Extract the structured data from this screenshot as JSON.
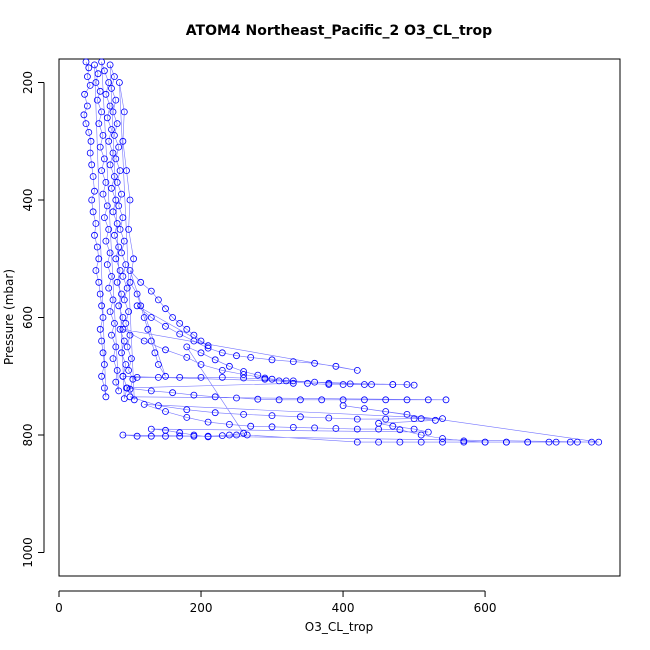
{
  "chart_data": {
    "type": "scatter",
    "title": "ATOM4 Northeast_Pacific_2 O3_CL_trop",
    "xlabel": "O3_CL_trop",
    "ylabel": "Pressure (mbar)",
    "xlim": [
      0,
      790
    ],
    "ylim": [
      1040,
      160
    ],
    "y_reversed": true,
    "x_ticks": [
      0,
      200,
      400,
      600
    ],
    "y_ticks": [
      200,
      400,
      600,
      800,
      1000
    ],
    "x_tick_labels": [
      "0",
      "200",
      "400",
      "600"
    ],
    "y_tick_labels": [
      "200",
      "400",
      "600",
      "800",
      "1000"
    ],
    "grid": false,
    "legend": "none",
    "marker": "open-circle",
    "connect_points": true,
    "series_color": "#0000ff",
    "series": [
      {
        "points": [
          [
            38,
            165
          ],
          [
            42,
            175
          ],
          [
            40,
            190
          ],
          [
            44,
            205
          ],
          [
            36,
            220
          ],
          [
            40,
            240
          ],
          [
            35,
            255
          ],
          [
            38,
            270
          ],
          [
            42,
            285
          ],
          [
            45,
            300
          ],
          [
            44,
            320
          ],
          [
            46,
            340
          ],
          [
            48,
            360
          ],
          [
            50,
            385
          ],
          [
            46,
            400
          ],
          [
            48,
            420
          ],
          [
            52,
            440
          ],
          [
            50,
            460
          ],
          [
            54,
            480
          ],
          [
            56,
            500
          ],
          [
            52,
            520
          ],
          [
            56,
            540
          ],
          [
            58,
            560
          ],
          [
            60,
            580
          ],
          [
            62,
            600
          ],
          [
            58,
            620
          ],
          [
            60,
            640
          ],
          [
            62,
            660
          ],
          [
            64,
            680
          ],
          [
            60,
            700
          ],
          [
            64,
            720
          ],
          [
            66,
            735
          ],
          [
            50,
            170
          ],
          [
            55,
            185
          ],
          [
            52,
            200
          ],
          [
            58,
            215
          ],
          [
            54,
            230
          ],
          [
            60,
            250
          ],
          [
            56,
            270
          ],
          [
            62,
            290
          ],
          [
            58,
            310
          ],
          [
            64,
            330
          ],
          [
            60,
            350
          ],
          [
            66,
            370
          ],
          [
            62,
            390
          ],
          [
            68,
            410
          ],
          [
            64,
            430
          ],
          [
            70,
            450
          ],
          [
            66,
            470
          ],
          [
            72,
            490
          ],
          [
            68,
            510
          ],
          [
            74,
            530
          ],
          [
            70,
            550
          ],
          [
            76,
            570
          ],
          [
            72,
            590
          ],
          [
            78,
            610
          ],
          [
            74,
            630
          ],
          [
            80,
            650
          ],
          [
            76,
            670
          ],
          [
            82,
            690
          ],
          [
            80,
            710
          ],
          [
            84,
            725
          ],
          [
            60,
            165
          ],
          [
            64,
            180
          ],
          [
            70,
            200
          ],
          [
            66,
            220
          ],
          [
            72,
            240
          ],
          [
            68,
            260
          ],
          [
            74,
            280
          ],
          [
            70,
            300
          ],
          [
            76,
            320
          ],
          [
            72,
            340
          ],
          [
            78,
            360
          ],
          [
            74,
            380
          ],
          [
            80,
            400
          ],
          [
            76,
            420
          ],
          [
            82,
            440
          ],
          [
            78,
            460
          ],
          [
            84,
            480
          ],
          [
            80,
            500
          ],
          [
            86,
            520
          ],
          [
            82,
            540
          ],
          [
            88,
            560
          ],
          [
            84,
            580
          ],
          [
            90,
            600
          ],
          [
            86,
            620
          ],
          [
            92,
            640
          ],
          [
            88,
            660
          ],
          [
            94,
            680
          ],
          [
            90,
            700
          ],
          [
            96,
            720
          ],
          [
            92,
            738
          ],
          [
            72,
            170
          ],
          [
            78,
            190
          ],
          [
            74,
            210
          ],
          [
            80,
            230
          ],
          [
            76,
            250
          ],
          [
            82,
            270
          ],
          [
            78,
            290
          ],
          [
            84,
            310
          ],
          [
            80,
            330
          ],
          [
            86,
            350
          ],
          [
            82,
            370
          ],
          [
            88,
            390
          ],
          [
            84,
            410
          ],
          [
            90,
            430
          ],
          [
            86,
            450
          ],
          [
            92,
            470
          ],
          [
            88,
            490
          ],
          [
            94,
            510
          ],
          [
            90,
            530
          ],
          [
            96,
            550
          ],
          [
            92,
            570
          ],
          [
            98,
            590
          ],
          [
            94,
            610
          ],
          [
            100,
            630
          ],
          [
            96,
            650
          ],
          [
            102,
            670
          ],
          [
            98,
            690
          ],
          [
            104,
            705
          ],
          [
            100,
            722
          ],
          [
            106,
            740
          ],
          [
            85,
            200
          ],
          [
            92,
            250
          ],
          [
            90,
            300
          ],
          [
            95,
            350
          ],
          [
            100,
            400
          ],
          [
            98,
            450
          ],
          [
            105,
            500
          ],
          [
            100,
            540
          ],
          [
            110,
            560
          ],
          [
            115,
            580
          ],
          [
            120,
            600
          ],
          [
            125,
            620
          ],
          [
            130,
            640
          ],
          [
            135,
            660
          ],
          [
            140,
            680
          ],
          [
            150,
            700
          ],
          [
            100,
            520
          ],
          [
            115,
            540
          ],
          [
            130,
            555
          ],
          [
            140,
            570
          ],
          [
            150,
            585
          ],
          [
            160,
            600
          ],
          [
            170,
            610
          ],
          [
            180,
            620
          ],
          [
            190,
            630
          ],
          [
            200,
            640
          ],
          [
            210,
            648
          ],
          [
            110,
            580
          ],
          [
            130,
            600
          ],
          [
            150,
            615
          ],
          [
            170,
            628
          ],
          [
            190,
            640
          ],
          [
            210,
            652
          ],
          [
            230,
            660
          ],
          [
            250,
            665
          ],
          [
            270,
            668
          ],
          [
            300,
            672
          ],
          [
            330,
            675
          ],
          [
            360,
            678
          ],
          [
            390,
            683
          ],
          [
            420,
            690
          ],
          [
            90,
            620
          ],
          [
            120,
            640
          ],
          [
            150,
            655
          ],
          [
            180,
            668
          ],
          [
            200,
            680
          ],
          [
            230,
            690
          ],
          [
            260,
            697
          ],
          [
            290,
            703
          ],
          [
            320,
            708
          ],
          [
            350,
            712
          ],
          [
            380,
            714
          ],
          [
            400,
            714
          ],
          [
            430,
            714
          ],
          [
            470,
            714
          ],
          [
            500,
            715
          ],
          [
            90,
            700
          ],
          [
            110,
            702
          ],
          [
            140,
            702
          ],
          [
            170,
            702
          ],
          [
            200,
            702
          ],
          [
            230,
            702
          ],
          [
            260,
            703
          ],
          [
            290,
            705
          ],
          [
            310,
            708
          ],
          [
            330,
            712
          ],
          [
            95,
            720
          ],
          [
            130,
            725
          ],
          [
            160,
            728
          ],
          [
            190,
            732
          ],
          [
            220,
            735
          ],
          [
            250,
            737
          ],
          [
            280,
            739
          ],
          [
            310,
            740
          ],
          [
            340,
            740
          ],
          [
            370,
            740
          ],
          [
            400,
            740
          ],
          [
            430,
            740
          ],
          [
            460,
            740
          ],
          [
            490,
            740
          ],
          [
            520,
            740
          ],
          [
            545,
            740
          ],
          [
            100,
            735
          ],
          [
            140,
            750
          ],
          [
            180,
            757
          ],
          [
            220,
            762
          ],
          [
            260,
            765
          ],
          [
            300,
            767
          ],
          [
            340,
            769
          ],
          [
            380,
            771
          ],
          [
            420,
            773
          ],
          [
            460,
            773
          ],
          [
            500,
            772
          ],
          [
            540,
            772
          ],
          [
            120,
            748
          ],
          [
            150,
            760
          ],
          [
            180,
            770
          ],
          [
            210,
            778
          ],
          [
            240,
            782
          ],
          [
            270,
            785
          ],
          [
            300,
            786
          ],
          [
            330,
            787
          ],
          [
            360,
            788
          ],
          [
            390,
            789
          ],
          [
            420,
            790
          ],
          [
            450,
            790
          ],
          [
            480,
            791
          ],
          [
            510,
            800
          ],
          [
            540,
            806
          ],
          [
            570,
            810
          ],
          [
            600,
            812
          ],
          [
            630,
            812
          ],
          [
            660,
            812
          ],
          [
            690,
            812
          ],
          [
            720,
            812
          ],
          [
            750,
            812
          ],
          [
            90,
            800
          ],
          [
            110,
            802
          ],
          [
            130,
            802
          ],
          [
            150,
            802
          ],
          [
            170,
            802
          ],
          [
            190,
            802
          ],
          [
            210,
            802
          ],
          [
            230,
            801
          ],
          [
            250,
            800
          ],
          [
            265,
            800
          ],
          [
            420,
            812
          ],
          [
            450,
            812
          ],
          [
            480,
            812
          ],
          [
            510,
            812
          ],
          [
            540,
            812
          ],
          [
            570,
            812
          ],
          [
            600,
            812
          ],
          [
            630,
            812
          ],
          [
            660,
            812
          ],
          [
            700,
            812
          ],
          [
            730,
            812
          ],
          [
            760,
            812
          ],
          [
            400,
            750
          ],
          [
            430,
            755
          ],
          [
            460,
            760
          ],
          [
            490,
            765
          ],
          [
            510,
            772
          ],
          [
            530,
            775
          ],
          [
            450,
            780
          ],
          [
            470,
            785
          ],
          [
            500,
            790
          ],
          [
            520,
            795
          ],
          [
            130,
            790
          ],
          [
            150,
            792
          ],
          [
            170,
            796
          ],
          [
            190,
            800
          ],
          [
            210,
            803
          ],
          [
            240,
            800
          ],
          [
            260,
            797
          ],
          [
            180,
            650
          ],
          [
            200,
            660
          ],
          [
            220,
            672
          ],
          [
            240,
            683
          ],
          [
            260,
            692
          ],
          [
            280,
            698
          ],
          [
            300,
            705
          ],
          [
            330,
            708
          ],
          [
            360,
            710
          ],
          [
            380,
            712
          ],
          [
            410,
            713
          ],
          [
            440,
            714
          ],
          [
            470,
            714
          ],
          [
            490,
            714
          ]
        ]
      }
    ]
  }
}
